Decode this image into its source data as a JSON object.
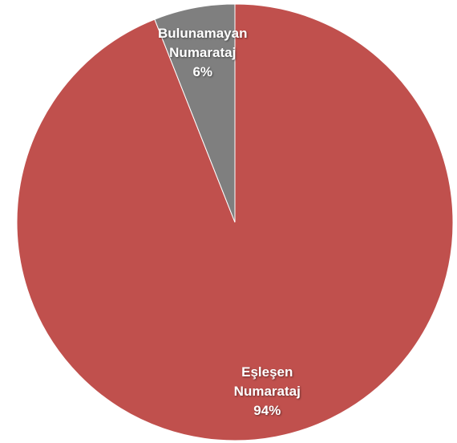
{
  "chart_data": {
    "type": "pie",
    "categories": [
      "Eşleşen Numarataj",
      "Bulunamayan Numarataj"
    ],
    "values": [
      94,
      6
    ],
    "value_labels": [
      "94%",
      "6%"
    ],
    "colors": [
      "#c0504d",
      "#7f7f7f"
    ]
  }
}
